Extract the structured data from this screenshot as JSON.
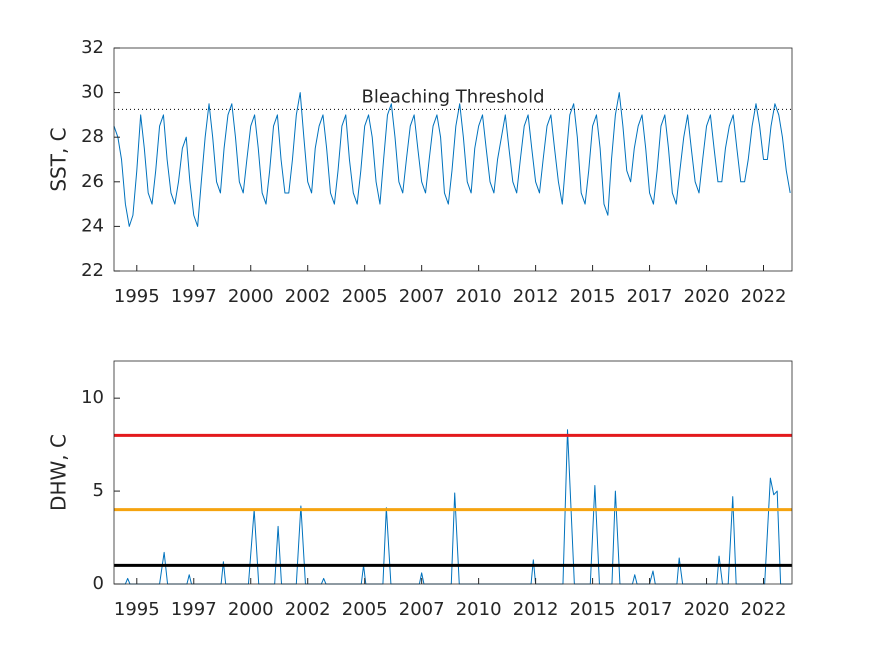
{
  "chart_data": [
    {
      "type": "line",
      "ylabel": "SST, C",
      "color": "#0072bd",
      "xlim": [
        1994,
        2023.75
      ],
      "ylim": [
        22,
        32
      ],
      "yticks": [
        22,
        24,
        26,
        28,
        30,
        32
      ],
      "xticks": [
        {
          "value": 1995,
          "label": "1995"
        },
        {
          "value": 1997.5,
          "label": "1997"
        },
        {
          "value": 2000,
          "label": "2000"
        },
        {
          "value": 2002.5,
          "label": "2002"
        },
        {
          "value": 2005,
          "label": "2005"
        },
        {
          "value": 2007.5,
          "label": "2007"
        },
        {
          "value": 2010,
          "label": "2010"
        },
        {
          "value": 2012.5,
          "label": "2012"
        },
        {
          "value": 2015,
          "label": "2015"
        },
        {
          "value": 2017.5,
          "label": "2017"
        },
        {
          "value": 2020,
          "label": "2020"
        },
        {
          "value": 2022.5,
          "label": "2022"
        }
      ],
      "threshold": 29.25,
      "annotation": "Bleaching Threshold",
      "x": [
        1994,
        1994.17,
        1994.33,
        1994.5,
        1994.67,
        1994.83,
        1995,
        1995.17,
        1995.33,
        1995.5,
        1995.67,
        1995.83,
        1996,
        1996.17,
        1996.33,
        1996.5,
        1996.67,
        1996.83,
        1997,
        1997.17,
        1997.33,
        1997.5,
        1997.67,
        1997.83,
        1998,
        1998.17,
        1998.33,
        1998.5,
        1998.67,
        1998.83,
        1999,
        1999.17,
        1999.33,
        1999.5,
        1999.67,
        1999.83,
        2000,
        2000.17,
        2000.33,
        2000.5,
        2000.67,
        2000.83,
        2001,
        2001.17,
        2001.33,
        2001.5,
        2001.67,
        2001.83,
        2002,
        2002.17,
        2002.33,
        2002.5,
        2002.67,
        2002.83,
        2003,
        2003.17,
        2003.33,
        2003.5,
        2003.67,
        2003.83,
        2004,
        2004.17,
        2004.33,
        2004.5,
        2004.67,
        2004.83,
        2005,
        2005.17,
        2005.33,
        2005.5,
        2005.67,
        2005.83,
        2006,
        2006.17,
        2006.33,
        2006.5,
        2006.67,
        2006.83,
        2007,
        2007.17,
        2007.33,
        2007.5,
        2007.67,
        2007.83,
        2008,
        2008.17,
        2008.33,
        2008.5,
        2008.67,
        2008.83,
        2009,
        2009.17,
        2009.33,
        2009.5,
        2009.67,
        2009.83,
        2010,
        2010.17,
        2010.33,
        2010.5,
        2010.67,
        2010.83,
        2011,
        2011.17,
        2011.33,
        2011.5,
        2011.67,
        2011.83,
        2012,
        2012.17,
        2012.33,
        2012.5,
        2012.67,
        2012.83,
        2013,
        2013.17,
        2013.33,
        2013.5,
        2013.67,
        2013.83,
        2014,
        2014.17,
        2014.33,
        2014.5,
        2014.67,
        2014.83,
        2015,
        2015.17,
        2015.33,
        2015.5,
        2015.67,
        2015.83,
        2016,
        2016.17,
        2016.33,
        2016.5,
        2016.67,
        2016.83,
        2017,
        2017.17,
        2017.33,
        2017.5,
        2017.67,
        2017.83,
        2018,
        2018.17,
        2018.33,
        2018.5,
        2018.67,
        2018.83,
        2019,
        2019.17,
        2019.33,
        2019.5,
        2019.67,
        2019.83,
        2020,
        2020.17,
        2020.33,
        2020.5,
        2020.67,
        2020.83,
        2021,
        2021.17,
        2021.33,
        2021.5,
        2021.67,
        2021.83,
        2022,
        2022.17,
        2022.33,
        2022.5,
        2022.67,
        2022.83,
        2023,
        2023.17,
        2023.33,
        2023.5,
        2023.67
      ],
      "values": [
        28.5,
        28.0,
        27.0,
        25.0,
        24.0,
        24.5,
        26.5,
        29.0,
        27.5,
        25.5,
        25.0,
        26.5,
        28.5,
        29.0,
        27.0,
        25.5,
        25.0,
        26.0,
        27.5,
        28.0,
        26.0,
        24.5,
        24.0,
        26.0,
        28.0,
        29.5,
        28.0,
        26.0,
        25.5,
        27.5,
        29.0,
        29.5,
        28.0,
        26.0,
        25.5,
        27.0,
        28.5,
        29.0,
        27.5,
        25.5,
        25.0,
        26.5,
        28.5,
        29.0,
        27.0,
        25.5,
        25.5,
        27.0,
        29.0,
        30.0,
        28.0,
        26.0,
        25.5,
        27.5,
        28.5,
        29.0,
        27.5,
        25.5,
        25.0,
        26.5,
        28.5,
        29.0,
        27.0,
        25.5,
        25.0,
        26.5,
        28.5,
        29.0,
        28.0,
        26.0,
        25.0,
        27.0,
        29.0,
        29.5,
        28.0,
        26.0,
        25.5,
        27.0,
        28.5,
        29.0,
        27.5,
        26.0,
        25.5,
        27.0,
        28.5,
        29.0,
        28.0,
        25.5,
        25.0,
        26.5,
        28.5,
        29.5,
        28.0,
        26.0,
        25.5,
        27.5,
        28.5,
        29.0,
        27.5,
        26.0,
        25.5,
        27.0,
        28.0,
        29.0,
        27.5,
        26.0,
        25.5,
        27.0,
        28.5,
        29.0,
        27.5,
        26.0,
        25.5,
        27.0,
        28.5,
        29.0,
        27.5,
        26.0,
        25.0,
        27.0,
        29.0,
        29.5,
        28.0,
        25.5,
        25.0,
        26.5,
        28.5,
        29.0,
        27.5,
        25.0,
        24.5,
        27.0,
        29.0,
        30.0,
        28.5,
        26.5,
        26.0,
        27.5,
        28.5,
        29.0,
        27.5,
        25.5,
        25.0,
        26.5,
        28.5,
        29.0,
        27.5,
        25.5,
        25.0,
        26.5,
        28.0,
        29.0,
        27.5,
        26.0,
        25.5,
        27.0,
        28.5,
        29.0,
        27.5,
        26.0,
        26.0,
        27.5,
        28.5,
        29.0,
        27.5,
        26.0,
        26.0,
        27.0,
        28.5,
        29.5,
        28.5,
        27.0,
        27.0,
        28.5,
        29.5,
        29.0,
        28.0,
        26.5,
        25.5
      ]
    },
    {
      "type": "line",
      "ylabel": "DHW, C",
      "color": "#0072bd",
      "xlim": [
        1994,
        2023.75
      ],
      "ylim": [
        0,
        12
      ],
      "yticks": [
        0,
        5,
        10
      ],
      "xticks": [
        {
          "value": 1995,
          "label": "1995"
        },
        {
          "value": 1997.5,
          "label": "1997"
        },
        {
          "value": 2000,
          "label": "2000"
        },
        {
          "value": 2002.5,
          "label": "2002"
        },
        {
          "value": 2005,
          "label": "2005"
        },
        {
          "value": 2007.5,
          "label": "2007"
        },
        {
          "value": 2010,
          "label": "2010"
        },
        {
          "value": 2012.5,
          "label": "2012"
        },
        {
          "value": 2015,
          "label": "2015"
        },
        {
          "value": 2017.5,
          "label": "2017"
        },
        {
          "value": 2020,
          "label": "2020"
        },
        {
          "value": 2022.5,
          "label": "2022"
        }
      ],
      "hlines": [
        {
          "value": 8,
          "color": "#e31a1c"
        },
        {
          "value": 4,
          "color": "#f5a30f"
        },
        {
          "value": 1,
          "color": "#000000"
        }
      ],
      "x": [
        1994,
        1994.5,
        1994.6,
        1994.7,
        1996.0,
        1996.2,
        1996.35,
        1997.2,
        1997.3,
        1997.4,
        1998.7,
        1998.8,
        1998.9,
        1999.9,
        2000.15,
        2000.35,
        2001.05,
        2001.2,
        2001.35,
        2002.0,
        2002.2,
        2002.4,
        2003.1,
        2003.2,
        2003.3,
        2004.85,
        2004.95,
        2005.05,
        2005.8,
        2005.95,
        2006.15,
        2007.4,
        2007.5,
        2007.6,
        2008.8,
        2008.95,
        2009.15,
        2012.3,
        2012.4,
        2012.5,
        2013.7,
        2013.9,
        2014.2,
        2014.9,
        2015.1,
        2015.3,
        2015.85,
        2016.0,
        2016.2,
        2016.75,
        2016.85,
        2016.95,
        2017.5,
        2017.65,
        2017.75,
        2018.7,
        2018.8,
        2018.95,
        2020.45,
        2020.55,
        2020.7,
        2020.95,
        2021.15,
        2021.3,
        2022.55,
        2022.8,
        2022.95,
        2023.1,
        2023.25,
        2023.7
      ],
      "values": [
        0,
        0,
        0.3,
        0,
        0,
        1.7,
        0,
        0,
        0.5,
        0,
        0,
        1.2,
        0,
        0,
        4.0,
        0,
        0,
        3.1,
        0,
        0,
        4.2,
        0,
        0,
        0.3,
        0,
        0,
        1.0,
        0,
        0,
        4.1,
        0,
        0,
        0.6,
        0,
        0,
        4.9,
        0,
        0,
        1.3,
        0,
        0,
        8.3,
        0,
        0,
        5.3,
        0,
        0,
        5.0,
        0,
        0,
        0.5,
        0,
        0,
        0.7,
        0,
        0,
        1.4,
        0,
        0,
        1.5,
        0,
        0,
        4.7,
        0,
        0,
        5.7,
        4.8,
        5.0,
        0,
        0
      ]
    }
  ]
}
